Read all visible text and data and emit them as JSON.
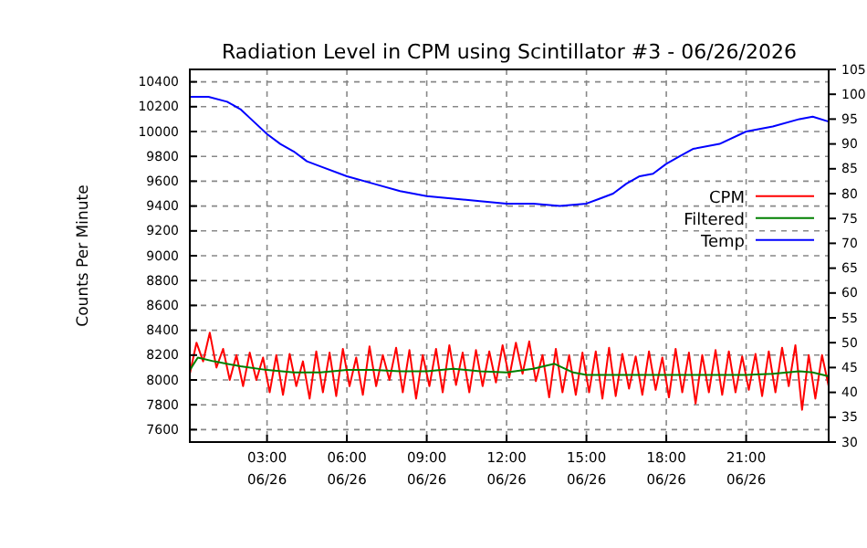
{
  "chart_data": {
    "type": "line",
    "title": "Radiation Level in CPM using Scintillator #3 - 06/26/2026",
    "ylabel": "Counts Per Minute",
    "xlim": [
      "2026-06-26T00:06",
      "2026-06-27T00:06"
    ],
    "xticks": [
      {
        "value": "2026-06-26T03:00",
        "label": "03:00\n06/26"
      },
      {
        "value": "2026-06-26T06:00",
        "label": "06:00\n06/26"
      },
      {
        "value": "2026-06-26T09:00",
        "label": "09:00\n06/26"
      },
      {
        "value": "2026-06-26T12:00",
        "label": "12:00\n06/26"
      },
      {
        "value": "2026-06-26T15:00",
        "label": "15:00\n06/26"
      },
      {
        "value": "2026-06-26T18:00",
        "label": "18:00\n06/26"
      },
      {
        "value": "2026-06-26T21:00",
        "label": "21:00\n06/26"
      }
    ],
    "ylim": [
      7500,
      10500
    ],
    "yticks": [
      7600,
      7800,
      8000,
      8200,
      8400,
      8600,
      8800,
      9000,
      9200,
      9400,
      9600,
      9800,
      10000,
      10200,
      10400
    ],
    "y2lim": [
      30,
      105
    ],
    "y2ticks": [
      30,
      35,
      40,
      45,
      50,
      55,
      60,
      65,
      70,
      75,
      80,
      85,
      90,
      95,
      100,
      105
    ],
    "grid": true,
    "legend": "right",
    "line_style": "solid",
    "marker": "none",
    "series": [
      {
        "name": "CPM",
        "color": "#ff0000",
        "x": [
          "2026-06-26T00:06",
          "2026-06-26T00:21",
          "2026-06-26T00:36",
          "2026-06-26T00:51",
          "2026-06-26T01:06",
          "2026-06-26T01:21",
          "2026-06-26T01:36",
          "2026-06-26T01:51",
          "2026-06-26T02:06",
          "2026-06-26T02:21",
          "2026-06-26T02:36",
          "2026-06-26T02:51",
          "2026-06-26T03:06",
          "2026-06-26T03:21",
          "2026-06-26T03:36",
          "2026-06-26T03:51",
          "2026-06-26T04:06",
          "2026-06-26T04:21",
          "2026-06-26T04:36",
          "2026-06-26T04:51",
          "2026-06-26T05:06",
          "2026-06-26T05:21",
          "2026-06-26T05:36",
          "2026-06-26T05:51",
          "2026-06-26T06:06",
          "2026-06-26T06:21",
          "2026-06-26T06:36",
          "2026-06-26T06:51",
          "2026-06-26T07:06",
          "2026-06-26T07:21",
          "2026-06-26T07:36",
          "2026-06-26T07:51",
          "2026-06-26T08:06",
          "2026-06-26T08:21",
          "2026-06-26T08:36",
          "2026-06-26T08:51",
          "2026-06-26T09:06",
          "2026-06-26T09:21",
          "2026-06-26T09:36",
          "2026-06-26T09:51",
          "2026-06-26T10:06",
          "2026-06-26T10:21",
          "2026-06-26T10:36",
          "2026-06-26T10:51",
          "2026-06-26T11:06",
          "2026-06-26T11:21",
          "2026-06-26T11:36",
          "2026-06-26T11:51",
          "2026-06-26T12:06",
          "2026-06-26T12:21",
          "2026-06-26T12:36",
          "2026-06-26T12:51",
          "2026-06-26T13:06",
          "2026-06-26T13:21",
          "2026-06-26T13:36",
          "2026-06-26T13:51",
          "2026-06-26T14:06",
          "2026-06-26T14:21",
          "2026-06-26T14:36",
          "2026-06-26T14:51",
          "2026-06-26T15:06",
          "2026-06-26T15:21",
          "2026-06-26T15:36",
          "2026-06-26T15:51",
          "2026-06-26T16:06",
          "2026-06-26T16:21",
          "2026-06-26T16:36",
          "2026-06-26T16:51",
          "2026-06-26T17:06",
          "2026-06-26T17:21",
          "2026-06-26T17:36",
          "2026-06-26T17:51",
          "2026-06-26T18:06",
          "2026-06-26T18:21",
          "2026-06-26T18:36",
          "2026-06-26T18:51",
          "2026-06-26T19:06",
          "2026-06-26T19:21",
          "2026-06-26T19:36",
          "2026-06-26T19:51",
          "2026-06-26T20:06",
          "2026-06-26T20:21",
          "2026-06-26T20:36",
          "2026-06-26T20:51",
          "2026-06-26T21:06",
          "2026-06-26T21:21",
          "2026-06-26T21:36",
          "2026-06-26T21:51",
          "2026-06-26T22:06",
          "2026-06-26T22:21",
          "2026-06-26T22:36",
          "2026-06-26T22:51",
          "2026-06-26T23:06",
          "2026-06-26T23:21",
          "2026-06-26T23:36",
          "2026-06-26T23:51",
          "2026-06-27T00:06"
        ],
        "values": [
          8050,
          8300,
          8150,
          8380,
          8100,
          8250,
          8000,
          8200,
          7950,
          8220,
          8000,
          8180,
          7900,
          8200,
          7880,
          8210,
          7950,
          8150,
          7850,
          8230,
          7900,
          8220,
          7870,
          8250,
          7950,
          8180,
          7880,
          8270,
          7950,
          8200,
          8000,
          8260,
          7900,
          8240,
          7850,
          8200,
          7950,
          8250,
          7900,
          8280,
          7960,
          8220,
          7900,
          8240,
          7950,
          8230,
          7980,
          8280,
          8020,
          8300,
          8050,
          8310,
          7990,
          8200,
          7860,
          8250,
          7900,
          8200,
          7880,
          8220,
          7900,
          8230,
          7850,
          8260,
          7870,
          8210,
          7930,
          8190,
          7880,
          8230,
          7920,
          8180,
          7860,
          8250,
          7900,
          8220,
          7810,
          8200,
          7900,
          8240,
          7880,
          8230,
          7900,
          8190,
          7920,
          8210,
          7870,
          8230,
          7900,
          8260,
          7950,
          8280,
          7760,
          8200,
          7850,
          8200,
          7950
        ]
      },
      {
        "name": "Filtered",
        "color": "#008000",
        "x": [
          "2026-06-26T00:06",
          "2026-06-26T00:24",
          "2026-06-26T01:00",
          "2026-06-26T02:00",
          "2026-06-26T03:00",
          "2026-06-26T04:00",
          "2026-06-26T05:00",
          "2026-06-26T06:00",
          "2026-06-26T07:00",
          "2026-06-26T08:00",
          "2026-06-26T09:00",
          "2026-06-26T10:00",
          "2026-06-26T11:00",
          "2026-06-26T12:00",
          "2026-06-26T13:00",
          "2026-06-26T13:48",
          "2026-06-26T14:30",
          "2026-06-26T15:00",
          "2026-06-26T16:00",
          "2026-06-26T17:00",
          "2026-06-26T18:00",
          "2026-06-26T19:00",
          "2026-06-26T20:00",
          "2026-06-26T21:00",
          "2026-06-26T22:00",
          "2026-06-26T23:00",
          "2026-06-26T23:30",
          "2026-06-27T00:06"
        ],
        "values": [
          8080,
          8180,
          8150,
          8110,
          8080,
          8060,
          8060,
          8080,
          8080,
          8070,
          8070,
          8090,
          8070,
          8060,
          8090,
          8130,
          8060,
          8040,
          8040,
          8040,
          8040,
          8040,
          8040,
          8040,
          8050,
          8070,
          8060,
          8030
        ]
      },
      {
        "name": "Temp",
        "color": "#0000ff",
        "axis": "y2",
        "x": [
          "2026-06-26T00:06",
          "2026-06-26T00:48",
          "2026-06-26T01:30",
          "2026-06-26T02:00",
          "2026-06-26T02:30",
          "2026-06-26T03:00",
          "2026-06-26T03:30",
          "2026-06-26T04:00",
          "2026-06-26T04:30",
          "2026-06-26T05:00",
          "2026-06-26T06:00",
          "2026-06-26T07:00",
          "2026-06-26T08:00",
          "2026-06-26T09:00",
          "2026-06-26T10:00",
          "2026-06-26T11:00",
          "2026-06-26T12:00",
          "2026-06-26T13:00",
          "2026-06-26T14:00",
          "2026-06-26T15:00",
          "2026-06-26T15:30",
          "2026-06-26T16:00",
          "2026-06-26T16:30",
          "2026-06-26T17:00",
          "2026-06-26T17:30",
          "2026-06-26T18:00",
          "2026-06-26T18:30",
          "2026-06-26T19:00",
          "2026-06-26T20:00",
          "2026-06-26T21:00",
          "2026-06-26T22:00",
          "2026-06-26T23:00",
          "2026-06-26T23:30",
          "2026-06-27T00:06"
        ],
        "values": [
          99.5,
          99.5,
          98.5,
          97,
          94.5,
          92,
          90,
          88.5,
          86.5,
          85.5,
          83.5,
          82,
          80.5,
          79.5,
          79,
          78.5,
          78,
          78,
          77.5,
          78,
          79,
          80,
          82,
          83.5,
          84,
          86,
          87.5,
          89,
          90,
          92.5,
          93.5,
          95,
          95.5,
          94.5
        ]
      }
    ]
  }
}
